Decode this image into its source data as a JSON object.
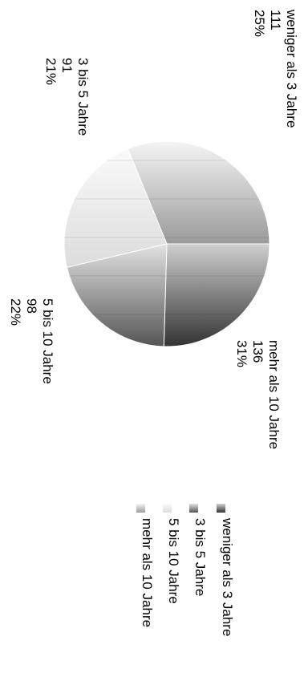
{
  "chart_data": {
    "type": "pie",
    "orientation": "rotated 90 degrees clockwise",
    "legend_position": "bottom",
    "grid": false,
    "slices": [
      {
        "label": "weniger als 3 Jahre",
        "value": 111,
        "percent": "25%",
        "color_dark": "#333333",
        "color_light": "#cfcfcf"
      },
      {
        "label": "3 bis 5 Jahre",
        "value": 91,
        "percent": "21%",
        "color_dark": "#555555",
        "color_light": "#e2e2e2"
      },
      {
        "label": "5 bis 10 Jahre",
        "value": 98,
        "percent": "22%",
        "color_dark": "#dcdcdc",
        "color_light": "#fafafa"
      },
      {
        "label": "mehr als 10 Jahre",
        "value": 136,
        "percent": "31%",
        "color_dark": "#9a9a9a",
        "color_light": "#f5f5f5"
      }
    ],
    "value_labels": [
      "111",
      "91",
      "98",
      "136"
    ],
    "percent_labels": [
      "25%",
      "21%",
      "22%",
      "31%"
    ]
  }
}
